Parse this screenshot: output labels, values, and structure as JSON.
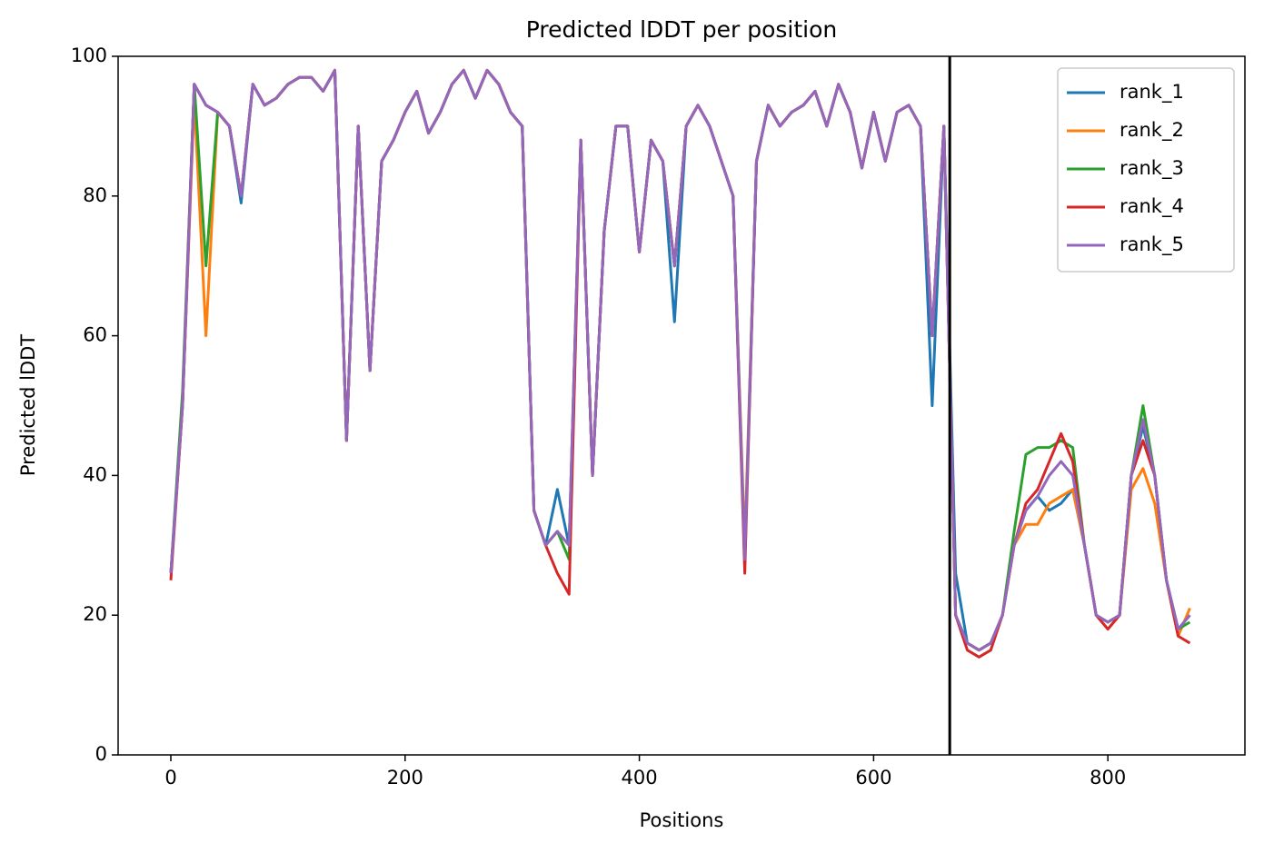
{
  "chart_data": {
    "type": "line",
    "title": "Predicted lDDT per position",
    "x_label": "Positions",
    "y_label": "Predicted lDDT",
    "x": [
      0,
      10,
      20,
      30,
      40,
      50,
      60,
      70,
      80,
      90,
      100,
      110,
      120,
      130,
      140,
      150,
      160,
      170,
      180,
      190,
      200,
      210,
      220,
      230,
      240,
      250,
      260,
      270,
      280,
      290,
      300,
      310,
      320,
      330,
      340,
      350,
      360,
      370,
      380,
      390,
      400,
      410,
      420,
      430,
      440,
      450,
      460,
      470,
      480,
      490,
      500,
      510,
      520,
      530,
      540,
      550,
      560,
      570,
      580,
      590,
      600,
      610,
      620,
      630,
      640,
      650,
      660,
      670,
      680,
      690,
      700,
      710,
      720,
      730,
      740,
      750,
      760,
      770,
      780,
      790,
      800,
      810,
      820,
      830,
      840,
      850,
      860,
      870
    ],
    "series": [
      {
        "name": "rank_1",
        "color": "#1f77b4",
        "values": [
          26,
          50,
          96,
          93,
          92,
          90,
          79,
          96,
          93,
          94,
          96,
          97,
          97,
          95,
          98,
          45,
          90,
          55,
          85,
          88,
          92,
          95,
          89,
          92,
          96,
          98,
          94,
          98,
          96,
          92,
          90,
          35,
          30,
          38,
          30,
          88,
          40,
          75,
          90,
          90,
          72,
          88,
          85,
          62,
          90,
          93,
          90,
          85,
          80,
          28,
          85,
          93,
          90,
          92,
          93,
          95,
          90,
          96,
          92,
          84,
          92,
          85,
          92,
          93,
          90,
          50,
          90,
          26,
          16,
          15,
          16,
          20,
          30,
          35,
          37,
          35,
          36,
          38,
          30,
          20,
          19,
          20,
          40,
          47,
          40,
          25,
          18,
          20
        ]
      },
      {
        "name": "rank_2",
        "color": "#ff7f0e",
        "values": [
          26,
          50,
          94,
          60,
          92,
          90,
          80,
          96,
          93,
          94,
          96,
          97,
          97,
          95,
          98,
          45,
          90,
          55,
          85,
          88,
          92,
          95,
          89,
          92,
          96,
          98,
          94,
          98,
          96,
          92,
          90,
          35,
          30,
          32,
          30,
          88,
          40,
          75,
          90,
          90,
          72,
          88,
          85,
          70,
          90,
          93,
          90,
          85,
          80,
          30,
          85,
          93,
          90,
          92,
          93,
          95,
          90,
          96,
          92,
          84,
          92,
          85,
          92,
          93,
          90,
          60,
          90,
          20,
          16,
          15,
          16,
          20,
          30,
          33,
          33,
          36,
          37,
          38,
          30,
          20,
          18,
          20,
          38,
          41,
          36,
          25,
          17,
          21
        ]
      },
      {
        "name": "rank_3",
        "color": "#2ca02c",
        "values": [
          26,
          52,
          96,
          70,
          92,
          90,
          80,
          96,
          93,
          94,
          96,
          97,
          97,
          95,
          98,
          45,
          90,
          55,
          85,
          88,
          92,
          95,
          89,
          92,
          96,
          98,
          94,
          98,
          96,
          92,
          90,
          35,
          30,
          32,
          28,
          88,
          40,
          75,
          90,
          90,
          72,
          88,
          85,
          70,
          90,
          93,
          90,
          85,
          80,
          28,
          85,
          93,
          90,
          92,
          93,
          95,
          90,
          96,
          92,
          84,
          92,
          85,
          92,
          93,
          90,
          60,
          90,
          20,
          16,
          15,
          16,
          20,
          32,
          43,
          44,
          44,
          45,
          44,
          30,
          20,
          19,
          20,
          40,
          50,
          40,
          25,
          18,
          19
        ]
      },
      {
        "name": "rank_4",
        "color": "#d62728",
        "values": [
          25,
          50,
          96,
          93,
          92,
          90,
          80,
          96,
          93,
          94,
          96,
          97,
          97,
          95,
          98,
          45,
          90,
          55,
          85,
          88,
          92,
          95,
          89,
          92,
          96,
          98,
          94,
          98,
          96,
          92,
          90,
          35,
          30,
          26,
          23,
          88,
          40,
          75,
          90,
          90,
          72,
          88,
          85,
          70,
          90,
          93,
          90,
          85,
          80,
          26,
          85,
          93,
          90,
          92,
          93,
          95,
          90,
          96,
          92,
          84,
          92,
          85,
          92,
          93,
          90,
          60,
          90,
          20,
          15,
          14,
          15,
          20,
          30,
          36,
          38,
          42,
          46,
          42,
          30,
          20,
          18,
          20,
          40,
          45,
          40,
          25,
          17,
          16
        ]
      },
      {
        "name": "rank_5",
        "color": "#9467bd",
        "values": [
          26,
          50,
          96,
          93,
          92,
          90,
          80,
          96,
          93,
          94,
          96,
          97,
          97,
          95,
          98,
          45,
          90,
          55,
          85,
          88,
          92,
          95,
          89,
          92,
          96,
          98,
          94,
          98,
          96,
          92,
          90,
          35,
          30,
          32,
          30,
          88,
          40,
          75,
          90,
          90,
          72,
          88,
          85,
          70,
          90,
          93,
          90,
          85,
          80,
          28,
          85,
          93,
          90,
          92,
          93,
          95,
          90,
          96,
          92,
          84,
          92,
          85,
          92,
          93,
          90,
          60,
          90,
          20,
          16,
          15,
          16,
          20,
          30,
          35,
          37,
          40,
          42,
          40,
          30,
          20,
          19,
          20,
          40,
          48,
          40,
          25,
          18,
          20
        ]
      }
    ],
    "vline": 665,
    "xlim": [
      -45,
      917
    ],
    "ylim": [
      0,
      100
    ],
    "xticks": [
      0,
      200,
      400,
      600,
      800
    ],
    "yticks": [
      0,
      20,
      40,
      60,
      80,
      100
    ],
    "legend": "upper right"
  }
}
